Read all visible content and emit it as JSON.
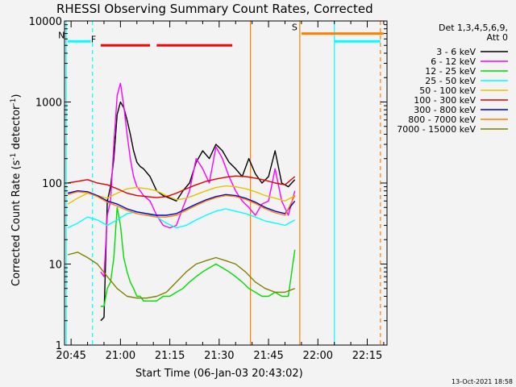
{
  "chart_data": {
    "type": "line",
    "title": "RHESSI Observing Summary Count Rates, Corrected",
    "xlabel": "Start Time (06-Jan-03 20:43:02)",
    "ylabel": "Corrected Count Rate (s",
    "ylabel_sup1": "-1",
    "ylabel_mid": " detector",
    "ylabel_sup2": "-1",
    "ylabel_end": ")",
    "yscale": "log",
    "ylim": [
      1,
      10000
    ],
    "xlim_minutes": [
      -2,
      96
    ],
    "x_unit": "minutes after 20:45",
    "x_ticks": [
      {
        "m": 0,
        "label": "20:45"
      },
      {
        "m": 15,
        "label": "21:00"
      },
      {
        "m": 30,
        "label": "21:15"
      },
      {
        "m": 45,
        "label": "21:30"
      },
      {
        "m": 60,
        "label": "21:45"
      },
      {
        "m": 75,
        "label": "22:00"
      },
      {
        "m": 90,
        "label": "22:15"
      }
    ],
    "y_ticks": [
      {
        "v": 1,
        "label": "1"
      },
      {
        "v": 10,
        "label": "10"
      },
      {
        "v": 100,
        "label": "100"
      },
      {
        "v": 1000,
        "label": "1000"
      },
      {
        "v": 10000,
        "label": "10000"
      }
    ],
    "legend_header": [
      "Det 1,3,4,5,6,9,",
      "Att 0"
    ],
    "series": [
      {
        "name": "3 - 6 keV",
        "color": "#000000",
        "x": [
          9,
          10,
          11,
          12,
          13,
          14,
          15,
          16,
          17,
          18,
          19,
          20,
          21,
          22,
          24,
          26,
          28,
          30,
          32,
          34,
          36,
          38,
          40,
          42,
          44,
          46,
          48,
          50,
          52,
          54,
          56,
          58,
          60,
          62,
          64,
          66,
          68
        ],
        "y": [
          2,
          2.2,
          60,
          90,
          200,
          700,
          1000,
          850,
          600,
          400,
          250,
          180,
          160,
          150,
          120,
          80,
          70,
          65,
          60,
          80,
          100,
          180,
          250,
          200,
          300,
          250,
          180,
          150,
          120,
          200,
          130,
          100,
          120,
          250,
          100,
          90,
          110
        ]
      },
      {
        "name": "6 - 12 keV",
        "color": "#ff00ff",
        "x": [
          9,
          10,
          11,
          12,
          13,
          14,
          15,
          16,
          17,
          18,
          19,
          20,
          21,
          22,
          24,
          26,
          28,
          30,
          32,
          34,
          36,
          38,
          40,
          42,
          44,
          46,
          48,
          50,
          52,
          54,
          56,
          58,
          60,
          62,
          64,
          66,
          68
        ],
        "y": [
          8,
          7,
          40,
          60,
          300,
          1200,
          1700,
          900,
          400,
          200,
          120,
          90,
          80,
          70,
          60,
          40,
          30,
          28,
          30,
          50,
          80,
          200,
          150,
          100,
          280,
          200,
          120,
          80,
          60,
          50,
          40,
          55,
          60,
          150,
          60,
          40,
          80
        ]
      },
      {
        "name": "12 - 25 keV",
        "color": "#00dd00",
        "x": [
          9,
          10,
          11,
          12,
          13,
          14,
          15,
          16,
          17,
          18,
          19,
          20,
          21,
          22,
          24,
          26,
          28,
          30,
          32,
          34,
          36,
          38,
          40,
          42,
          44,
          46,
          48,
          50,
          52,
          54,
          56,
          58,
          60,
          62,
          64,
          66,
          68
        ],
        "y": [
          3,
          3,
          5,
          6,
          12,
          50,
          30,
          12,
          8,
          6,
          5,
          4,
          4,
          3.5,
          3.5,
          3.5,
          4,
          4,
          4.5,
          5,
          6,
          7,
          8,
          9,
          10,
          9,
          8,
          7,
          6,
          5,
          4.5,
          4,
          4,
          4.5,
          4,
          4,
          15
        ]
      },
      {
        "name": "25 - 50 keV",
        "color": "#00ffff",
        "x": [
          -1,
          2,
          5,
          8,
          11,
          14,
          17,
          20,
          23,
          26,
          29,
          32,
          35,
          38,
          41,
          44,
          47,
          50,
          53,
          56,
          59,
          62,
          65,
          68
        ],
        "y": [
          28,
          32,
          38,
          35,
          30,
          35,
          42,
          44,
          42,
          38,
          32,
          28,
          30,
          35,
          40,
          45,
          48,
          45,
          42,
          38,
          34,
          32,
          30,
          35
        ]
      },
      {
        "name": "50 - 100 keV",
        "color": "#e6c300",
        "x": [
          -1,
          2,
          5,
          8,
          11,
          14,
          17,
          20,
          23,
          26,
          29,
          32,
          35,
          38,
          41,
          44,
          47,
          50,
          53,
          56,
          59,
          62,
          65,
          68
        ],
        "y": [
          55,
          65,
          75,
          70,
          65,
          75,
          85,
          88,
          85,
          80,
          70,
          62,
          65,
          72,
          80,
          88,
          92,
          90,
          85,
          78,
          70,
          65,
          60,
          70
        ]
      },
      {
        "name": "100 - 300 keV",
        "color": "#dd0000",
        "x": [
          -1,
          2,
          5,
          8,
          11,
          14,
          17,
          20,
          23,
          26,
          29,
          32,
          35,
          38,
          41,
          44,
          47,
          50,
          53,
          56,
          59,
          62,
          65,
          68
        ],
        "y": [
          100,
          105,
          110,
          100,
          95,
          85,
          75,
          70,
          68,
          66,
          68,
          75,
          85,
          95,
          105,
          112,
          118,
          122,
          120,
          115,
          108,
          100,
          95,
          120
        ]
      },
      {
        "name": "300 - 800 keV",
        "color": "#0000dd",
        "x": [
          -1,
          2,
          5,
          8,
          11,
          14,
          17,
          20,
          23,
          26,
          29,
          32,
          35,
          38,
          41,
          44,
          47,
          50,
          53,
          56,
          59,
          62,
          65,
          68
        ],
        "y": [
          75,
          80,
          78,
          70,
          60,
          55,
          48,
          44,
          42,
          40,
          40,
          42,
          48,
          55,
          62,
          68,
          72,
          70,
          65,
          58,
          50,
          45,
          42,
          60
        ]
      },
      {
        "name": "800 - 7000 keV",
        "color": "#ff8000",
        "x": [
          -1,
          2,
          5,
          8,
          11,
          14,
          17,
          20,
          23,
          26,
          29,
          32,
          35,
          38,
          41,
          44,
          47,
          50,
          53,
          56,
          59,
          62,
          65,
          68
        ],
        "y": [
          72,
          78,
          76,
          68,
          58,
          52,
          46,
          42,
          40,
          38,
          38,
          40,
          46,
          53,
          60,
          66,
          70,
          68,
          63,
          56,
          48,
          43,
          40,
          70
        ]
      },
      {
        "name": "7000 - 15000 keV",
        "color": "#808000",
        "x": [
          -1,
          2,
          5,
          8,
          11,
          14,
          17,
          20,
          23,
          26,
          29,
          32,
          35,
          38,
          41,
          44,
          47,
          50,
          53,
          56,
          59,
          62,
          65,
          68
        ],
        "y": [
          13,
          14,
          12,
          10,
          7,
          5,
          4,
          3.8,
          3.8,
          4,
          4.5,
          6,
          8,
          10,
          11,
          12,
          11,
          10,
          8,
          6,
          5,
          4.5,
          4.5,
          5
        ]
      }
    ],
    "flag_bars": [
      {
        "label": "F",
        "color": "#ff0000",
        "value": 5000,
        "segments": [
          [
            9,
            24
          ],
          [
            26,
            49
          ]
        ]
      },
      {
        "label": "S",
        "color": "#ff8000",
        "value": 7000,
        "segments": [
          [
            70,
            95
          ]
        ]
      },
      {
        "label": "N",
        "color": "#00ffff",
        "value": 5600,
        "segments": [
          [
            -1,
            6
          ],
          [
            80,
            94
          ]
        ]
      }
    ],
    "flag_lines": [
      {
        "color": "#00ffff",
        "x": -1.5,
        "style": "solid"
      },
      {
        "color": "#00ffff",
        "x": 6.5,
        "style": "dashed"
      },
      {
        "color": "#ff8000",
        "x": 69.5,
        "style": "solid"
      },
      {
        "color": "#00ffff",
        "x": 80,
        "style": "solid"
      },
      {
        "color": "#ff8000",
        "x": 94,
        "style": "dashed"
      },
      {
        "color": "#ff8000",
        "x": 54.5,
        "style": "solid"
      }
    ]
  },
  "footer_stamp": "13-Oct-2021 18:58"
}
